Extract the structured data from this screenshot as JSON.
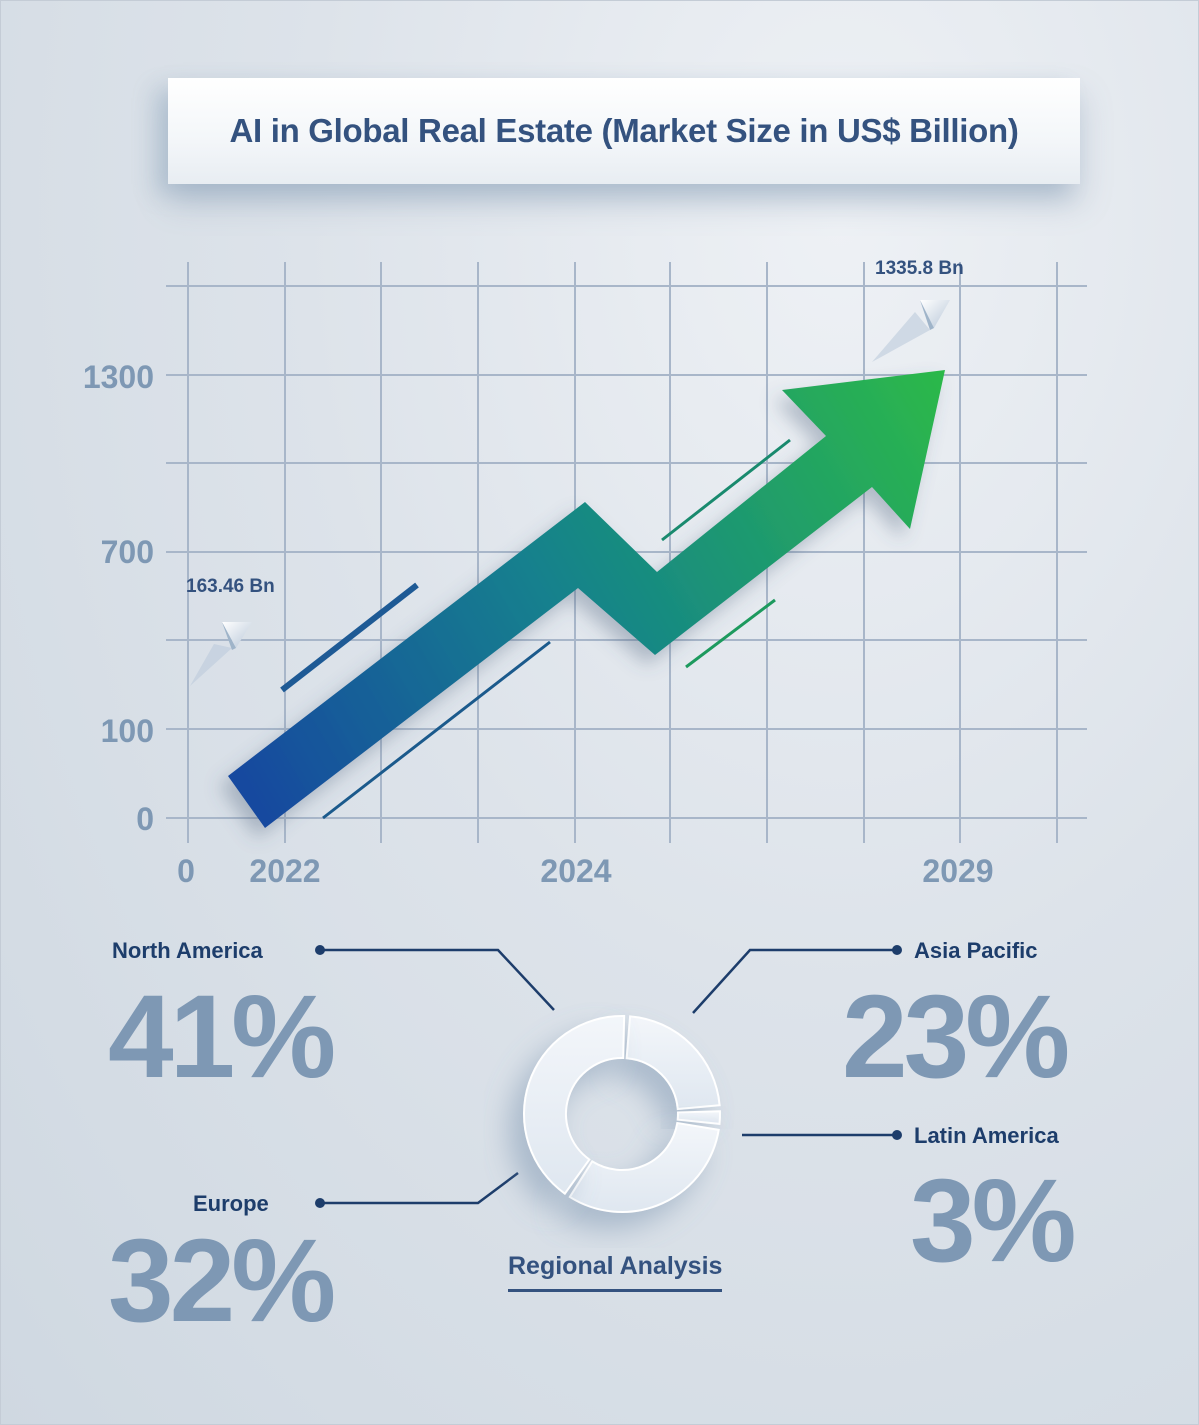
{
  "title": "AI in Global Real Estate (Market Size in US$ Billion)",
  "chart_data": [
    {
      "type": "line",
      "title": "AI in Global Real Estate (Market Size in US$ Billion)",
      "x_ticks": [
        "0",
        "2022",
        "2024",
        "2029"
      ],
      "y_ticks": [
        "0",
        "100",
        "700",
        "1300"
      ],
      "series": [
        {
          "x": [
            "2022",
            "2029"
          ],
          "values": [
            163.46,
            1335.8
          ]
        }
      ],
      "annotations": [
        "163.46 Bn",
        "1335.8 Bn"
      ],
      "grid": true
    },
    {
      "type": "pie",
      "title": "Regional Analysis",
      "categories": [
        "North America",
        "Europe",
        "Asia Pacific",
        "Latin America"
      ],
      "values": [
        41,
        32,
        23,
        3
      ],
      "labels": [
        "41%",
        "32%",
        "23%",
        "3%"
      ]
    }
  ],
  "colors": {
    "arrow_start": "#1546a0",
    "arrow_end": "#2cb84a",
    "grid": "#a8b6c9",
    "axis_text": "#7e98b4",
    "label": "#1d3d6b",
    "title": "#34527f"
  },
  "regional_title": "Regional Analysis"
}
